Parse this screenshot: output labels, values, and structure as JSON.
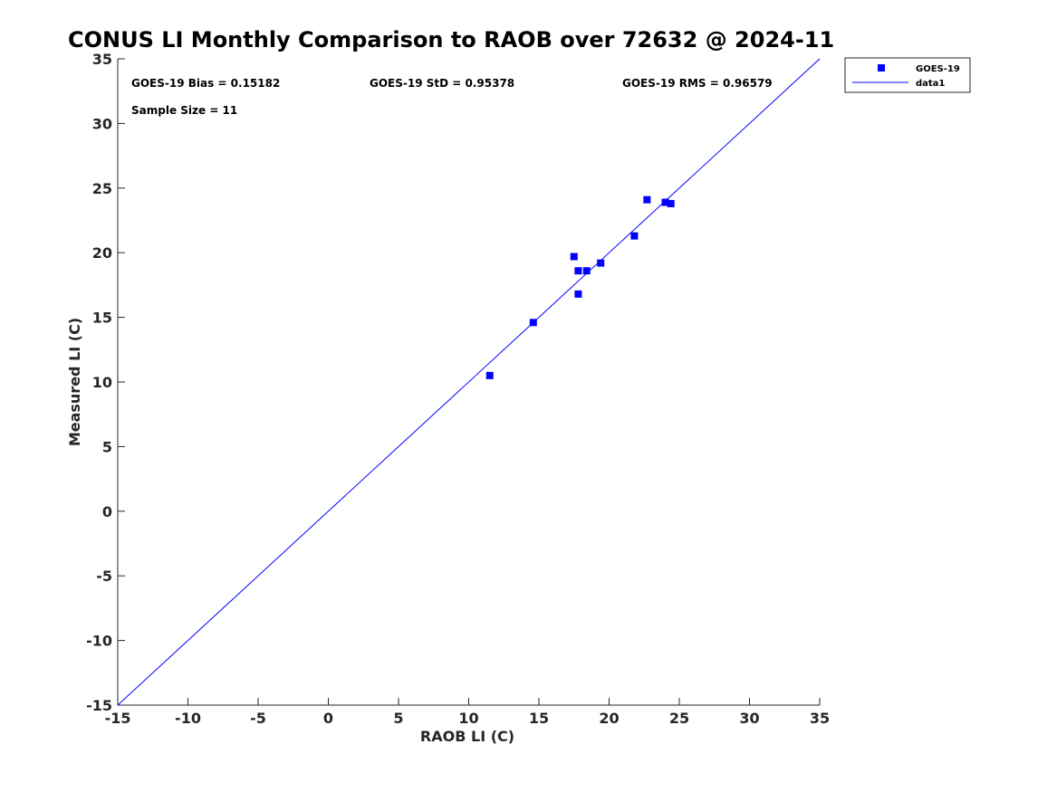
{
  "chart_data": {
    "type": "scatter",
    "title": "CONUS LI Monthly Comparison to RAOB over 72632 @ 2024-11",
    "xlabel": "RAOB LI (C)",
    "ylabel": "Measured LI (C)",
    "xlim": [
      -15,
      35
    ],
    "ylim": [
      -15,
      35
    ],
    "xticks": [
      "-15",
      "-10",
      "-5",
      "0",
      "5",
      "10",
      "15",
      "20",
      "25",
      "30",
      "35"
    ],
    "yticks": [
      "35",
      "30",
      "25",
      "20",
      "15",
      "10",
      "5",
      "0",
      "-5",
      "-10",
      "-15"
    ],
    "grid": false,
    "legend_position": "top-right (outside)",
    "annotations": {
      "bias": "GOES-19 Bias = 0.15182",
      "std": "GOES-19 StD = 0.95378",
      "rms": "GOES-19 RMS = 0.96579",
      "sample": "Sample Size = 11"
    },
    "series": [
      {
        "name": "GOES-19",
        "marker": "square",
        "color": "#0000ff",
        "x": [
          11.5,
          14.6,
          17.5,
          17.8,
          17.8,
          18.4,
          19.4,
          21.8,
          22.7,
          24.0,
          24.4
        ],
        "y": [
          10.5,
          14.6,
          19.7,
          18.6,
          16.8,
          18.6,
          19.2,
          21.3,
          24.1,
          23.9,
          23.8
        ]
      },
      {
        "name": "data1",
        "line": "solid",
        "color": "#0000ff",
        "x": [
          -15,
          35
        ],
        "y": [
          -15,
          35
        ]
      }
    ]
  }
}
